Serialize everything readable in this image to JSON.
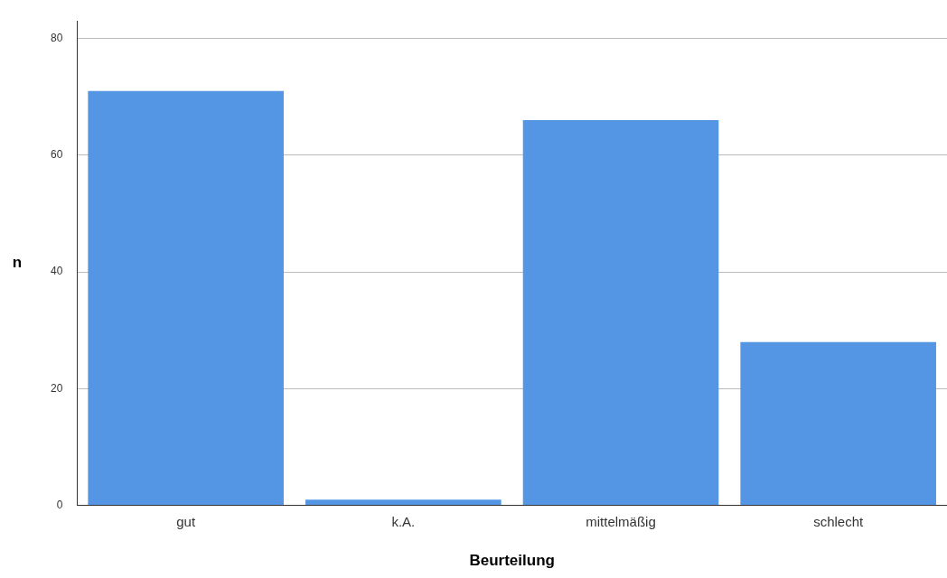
{
  "chart_data": {
    "type": "bar",
    "xlabel": "Beurteilung",
    "ylabel": "n",
    "categories": [
      "gut",
      "k.A.",
      "mittelmäßig",
      "schlecht"
    ],
    "values": [
      71,
      1,
      66,
      28
    ],
    "color": "#5596e4",
    "ylim": [
      0,
      83
    ],
    "yticks": [
      0,
      20,
      40,
      60,
      80
    ],
    "grid": "y",
    "legend": false
  }
}
